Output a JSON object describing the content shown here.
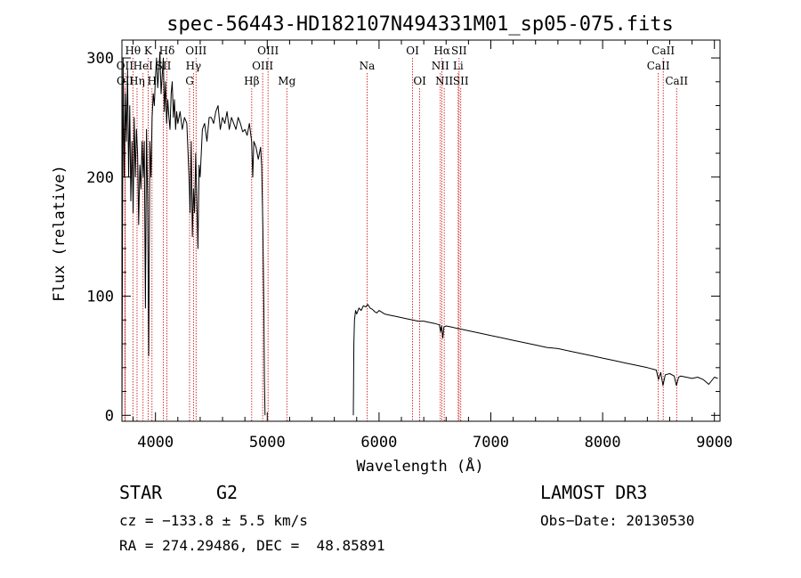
{
  "chart_data": {
    "type": "line",
    "title": "spec-56443-HD182107N494331M01_sp05-075.fits",
    "xlabel": "Wavelength (Å)",
    "ylabel": "Flux (relative)",
    "xlim": [
      3700,
      9050
    ],
    "ylim": [
      -5,
      315
    ],
    "xticks": [
      4000,
      5000,
      6000,
      7000,
      8000,
      9000
    ],
    "yticks": [
      0,
      100,
      200,
      300
    ],
    "grid": false,
    "series": [
      {
        "name": "flux",
        "segments": [
          {
            "x": [
              3700,
              3710,
              3720,
              3730,
              3740,
              3750,
              3760,
              3770,
              3780,
              3790,
              3800,
              3810,
              3820,
              3830,
              3840,
              3850,
              3860,
              3870,
              3880,
              3890,
              3900,
              3910,
              3920,
              3930,
              3940,
              3950,
              3960,
              3970,
              3980,
              3990,
              4000,
              4010,
              4020,
              4030,
              4040,
              4050,
              4060,
              4070,
              4080,
              4090,
              4100,
              4110,
              4120,
              4130,
              4140,
              4150,
              4160,
              4170,
              4180,
              4190,
              4200,
              4220,
              4240,
              4260,
              4280,
              4300,
              4310,
              4320,
              4330,
              4340,
              4350,
              4360,
              4370,
              4380,
              4390,
              4400,
              4420,
              4440,
              4460,
              4480,
              4500,
              4520,
              4540,
              4560,
              4580,
              4600,
              4620,
              4640,
              4660,
              4680,
              4700,
              4720,
              4740,
              4760,
              4780,
              4800,
              4820,
              4840,
              4860,
              4870,
              4880,
              4900,
              4920,
              4940,
              4950,
              4960,
              4970,
              4975,
              4980
            ],
            "y": [
              0,
              300,
              200,
              270,
              230,
              290,
              200,
              260,
              180,
              230,
              170,
              250,
              200,
              240,
              220,
              160,
              210,
              190,
              230,
              200,
              230,
              90,
              240,
              180,
              50,
              230,
              200,
              250,
              270,
              260,
              285,
              300,
              275,
              290,
              305,
              270,
              285,
              300,
              255,
              280,
              245,
              265,
              250,
              240,
              270,
              280,
              250,
              265,
              240,
              255,
              245,
              255,
              240,
              250,
              245,
              200,
              170,
              230,
              150,
              190,
              170,
              220,
              180,
              140,
              210,
              200,
              240,
              245,
              230,
              250,
              250,
              245,
              255,
              260,
              240,
              250,
              245,
              255,
              240,
              250,
              245,
              240,
              250,
              245,
              238,
              240,
              235,
              245,
              230,
              200,
              230,
              225,
              215,
              225,
              210,
              160,
              90,
              30,
              0
            ]
          },
          {
            "x": [
              5770,
              5775,
              5780,
              5790,
              5800,
              5820,
              5840,
              5860,
              5880,
              5900,
              5920,
              5940,
              5960,
              5980,
              6000,
              6050,
              6100,
              6150,
              6200,
              6250,
              6300,
              6350,
              6400,
              6450,
              6500,
              6540,
              6550,
              6560,
              6570,
              6580,
              6600,
              6650,
              6700,
              6750,
              6800,
              6900,
              7000,
              7100,
              7200,
              7300,
              7400,
              7500,
              7600,
              7700,
              7800,
              7900,
              8000,
              8100,
              8200,
              8300,
              8400,
              8480,
              8500,
              8520,
              8540,
              8560,
              8600,
              8640,
              8660,
              8680,
              8700,
              8800,
              8850,
              8900,
              8950,
              9000,
              9030
            ],
            "y": [
              0,
              60,
              80,
              88,
              85,
              90,
              88,
              92,
              91,
              93,
              90,
              89,
              87,
              86,
              88,
              85,
              84,
              83,
              82,
              81,
              80,
              79,
              79,
              78,
              77,
              76,
              70,
              75,
              65,
              74,
              75,
              74,
              73,
              72,
              71,
              69,
              67,
              65,
              63,
              61,
              59,
              57,
              56,
              54,
              52,
              50,
              48,
              46,
              44,
              42,
              40,
              38,
              30,
              36,
              25,
              34,
              35,
              33,
              25,
              32,
              33,
              31,
              32,
              30,
              26,
              32,
              31
            ]
          }
        ]
      }
    ],
    "line_ids": [
      {
        "label": "Hθ",
        "wave": 3798,
        "row": 1
      },
      {
        "label": "OII",
        "wave": 3727,
        "row": 2
      },
      {
        "label": "OII",
        "wave": 3729,
        "row": 3
      },
      {
        "label": "K",
        "wave": 3934,
        "row": 1
      },
      {
        "label": "HeI",
        "wave": 3889,
        "row": 2
      },
      {
        "label": "Hη",
        "wave": 3835,
        "row": 3
      },
      {
        "label": "H",
        "wave": 3969,
        "row": 3
      },
      {
        "label": "Hδ",
        "wave": 4102,
        "row": 1
      },
      {
        "label": "SII",
        "wave": 4070,
        "row": 2
      },
      {
        "label": "OIII",
        "wave": 4363,
        "row": 1
      },
      {
        "label": "Hγ",
        "wave": 4340,
        "row": 2
      },
      {
        "label": "G",
        "wave": 4305,
        "row": 3
      },
      {
        "label": "Hβ",
        "wave": 4861,
        "row": 3
      },
      {
        "label": "OIII",
        "wave": 5007,
        "row": 1
      },
      {
        "label": "OIII",
        "wave": 4959,
        "row": 2
      },
      {
        "label": "Mg",
        "wave": 5175,
        "row": 3
      },
      {
        "label": "Na",
        "wave": 5893,
        "row": 2
      },
      {
        "label": "OI",
        "wave": 6300,
        "row": 1
      },
      {
        "label": "OI",
        "wave": 6364,
        "row": 3
      },
      {
        "label": "Hα",
        "wave": 6563,
        "row": 1
      },
      {
        "label": "SII",
        "wave": 6716,
        "row": 1
      },
      {
        "label": "NII",
        "wave": 6548,
        "row": 2
      },
      {
        "label": "Li",
        "wave": 6708,
        "row": 2
      },
      {
        "label": "NII",
        "wave": 6583,
        "row": 3
      },
      {
        "label": "SII",
        "wave": 6731,
        "row": 3
      },
      {
        "label": "CaII",
        "wave": 8542,
        "row": 1
      },
      {
        "label": "CaII",
        "wave": 8498,
        "row": 2
      },
      {
        "label": "CaII",
        "wave": 8662,
        "row": 3
      }
    ]
  },
  "info": {
    "object_class": "STAR",
    "subclass": "G2",
    "survey": "LAMOST DR3",
    "velocity": "cz = −133.8 ± 5.5 km/s",
    "obs_date": "Obs−Date: 20130530",
    "coords": "RA = 274.29486, DEC =  48.85891"
  },
  "colors": {
    "background": "#ffffff",
    "axes": "#000000",
    "line_markers": "#cc0000"
  }
}
